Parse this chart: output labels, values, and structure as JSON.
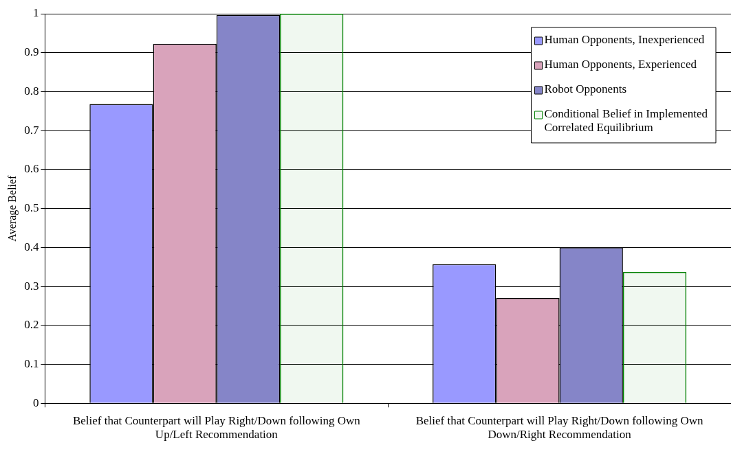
{
  "chart_data": {
    "type": "bar",
    "ylabel": "Average Belief",
    "categories": [
      "Belief that Counterpart will Play Right/Down following Own Up/Left Recommendation",
      "Belief that Counterpart will Play Right/Down following Own Down/Right Recommendation"
    ],
    "series": [
      {
        "name": "Human Opponents, Inexperienced",
        "color": "#9999ff",
        "values": [
          0.768,
          0.357
        ]
      },
      {
        "name": "Human Opponents, Experienced",
        "color": "#d9a3bb",
        "values": [
          0.923,
          0.27
        ]
      },
      {
        "name": "Robot Opponents",
        "color": "#8585c8",
        "values": [
          0.997,
          0.4
        ]
      },
      {
        "name": "Conditional Belief in Implemented Correlated Equilibrium",
        "color": "#008000",
        "values": [
          1,
          0.337
        ]
      }
    ],
    "ylim": [
      0,
      1
    ],
    "yticks": [
      0,
      0.1,
      0.2,
      0.3,
      0.4,
      0.5,
      0.6,
      0.7,
      0.8,
      0.9,
      1
    ],
    "grid": "y",
    "legend": "top right"
  }
}
